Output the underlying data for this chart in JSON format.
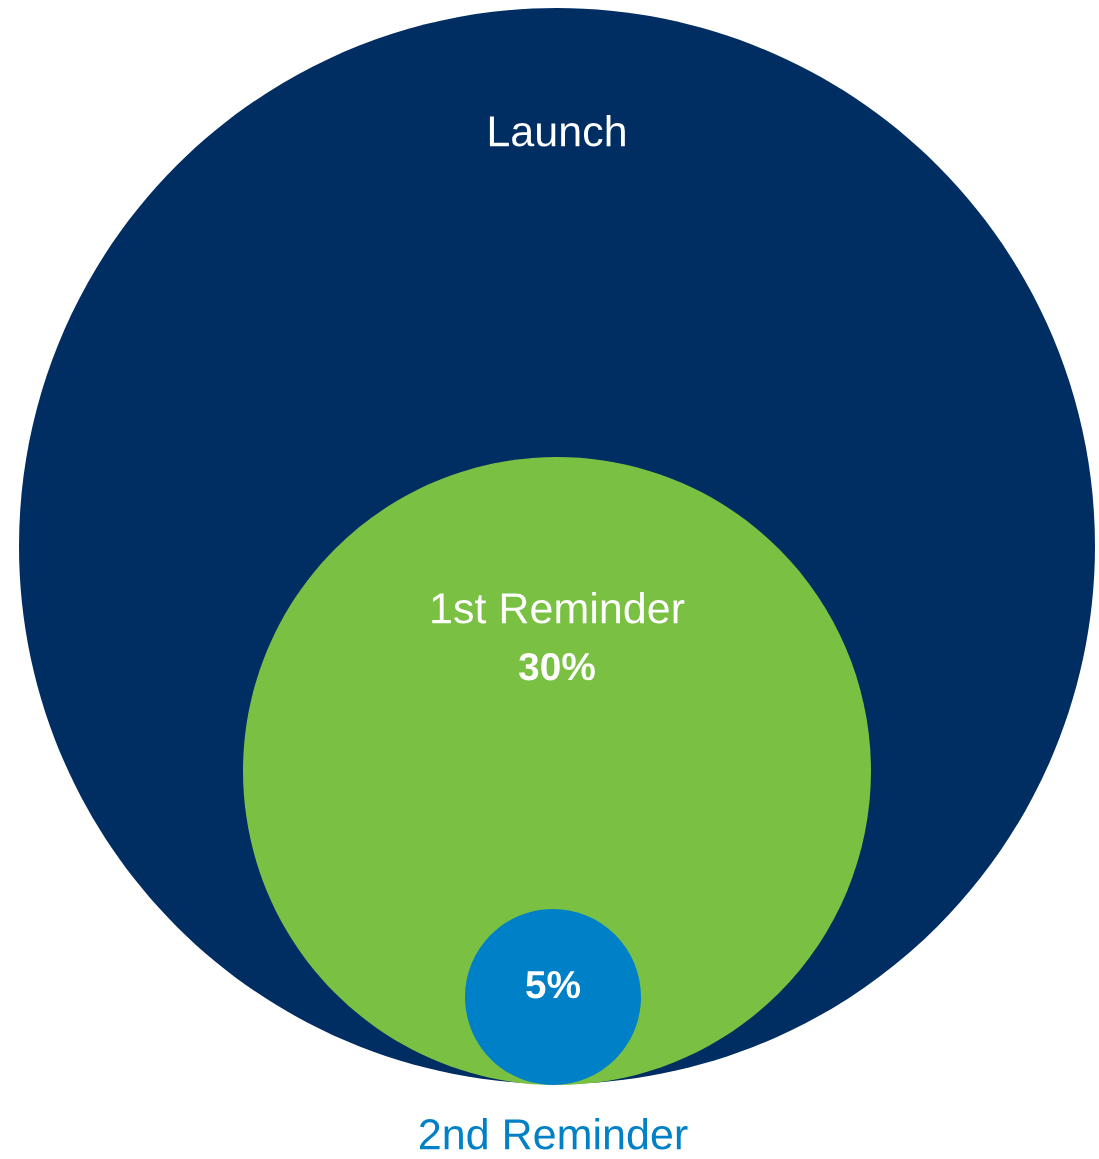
{
  "chart_data": {
    "type": "other",
    "categories": [
      "Launch",
      "1st Reminder",
      "2nd Reminder"
    ],
    "values": [
      null,
      30,
      5
    ],
    "value_labels": [
      null,
      "30%",
      "5%"
    ],
    "colors": [
      "#002d62",
      "#7ac143",
      "#0080c6"
    ]
  }
}
